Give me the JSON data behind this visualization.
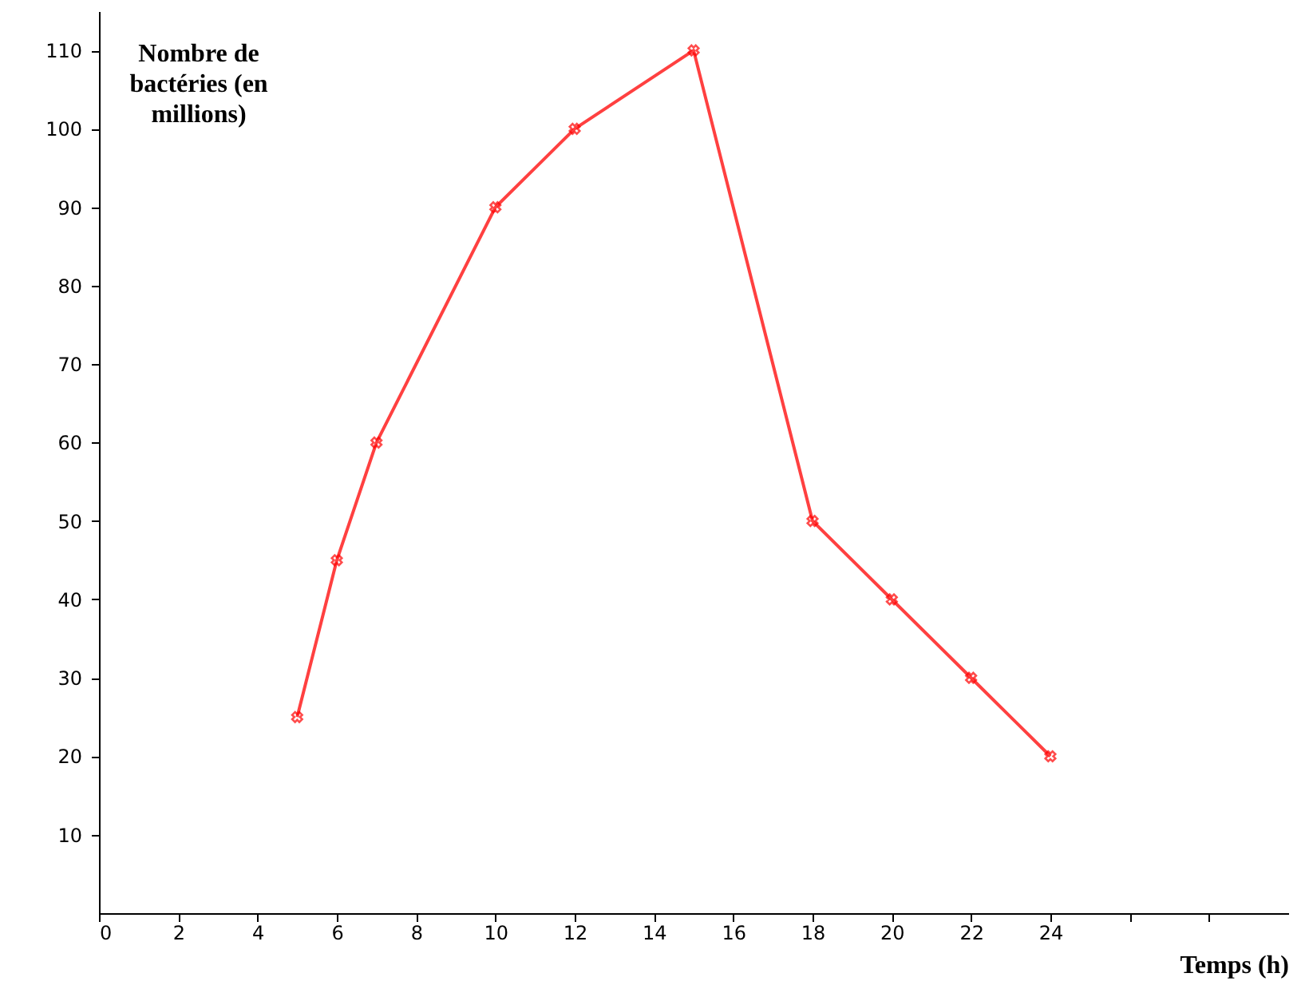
{
  "chart_data": {
    "type": "line",
    "xlabel": "Temps (h)",
    "ylabel": "Nombre de bactéries (en millions)",
    "x": [
      5,
      6,
      7,
      10,
      12,
      15,
      18,
      20,
      22,
      24
    ],
    "series": [
      {
        "color": "#ff4040",
        "values": [
          25,
          45,
          60,
          90,
          100,
          110,
          50,
          40,
          30,
          20
        ]
      }
    ],
    "xlim": [
      0,
      30
    ],
    "xticks": [
      0,
      2,
      4,
      6,
      8,
      10,
      12,
      14,
      16,
      18,
      20,
      22,
      24,
      {
        "value": 26,
        "label": null
      },
      {
        "value": 28,
        "label": null
      }
    ],
    "ylim": [
      0,
      115
    ],
    "yticks": [
      10,
      20,
      30,
      40,
      50,
      60,
      70,
      80,
      90,
      100,
      110
    ],
    "grid": false,
    "marker": "cross",
    "line_style": "solid"
  }
}
